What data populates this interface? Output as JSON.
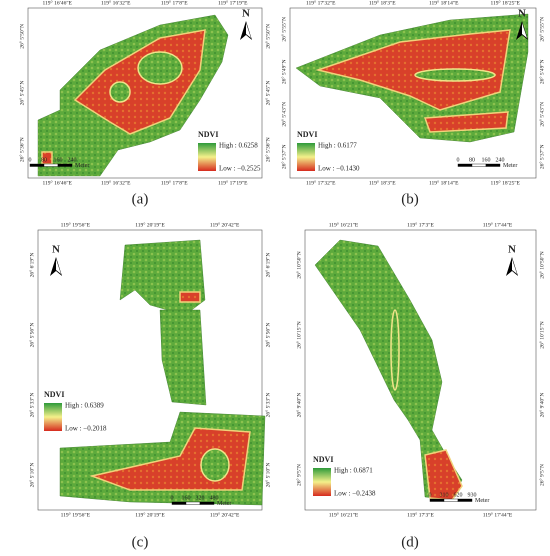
{
  "panels": [
    {
      "label": "(a)",
      "north": "N",
      "coords": {
        "top": [
          "119° 16′46″E",
          "119° 16′32″E",
          "119° 17′8″E",
          "119° 17′19″E"
        ],
        "bottom": [
          "119° 16′46″E",
          "119° 16′32″E",
          "119° 17′8″E",
          "119° 17′19″E"
        ],
        "left": [
          "26° 5′50″N",
          "26° 5′45″N",
          "26° 5′36″N"
        ],
        "right": [
          "26° 5′50″N",
          "26° 5′45″N",
          "26° 5′36″N"
        ]
      },
      "legend": {
        "title": "NDVI",
        "high": "High : 0.6258",
        "low": "Low : −0.2525"
      },
      "scale": {
        "ticks": [
          0,
          80,
          160,
          240
        ],
        "unit": "Meter"
      }
    },
    {
      "label": "(b)",
      "north": "N",
      "coords": {
        "top": [
          "119° 17′32″E",
          "119° 18′3″E",
          "119° 18′14″E",
          "119° 18′25″E"
        ],
        "bottom": [
          "119° 17′32″E",
          "119° 18′3″E",
          "119° 18′14″E",
          "119° 18′25″E"
        ],
        "left": [
          "26° 5′55″N",
          "26° 5′49″N",
          "26° 5′43″N",
          "26° 5′37″N"
        ],
        "right": [
          "26° 5′55″N",
          "26° 5′49″N",
          "26° 5′43″N",
          "26° 5′37″N"
        ]
      },
      "legend": {
        "title": "NDVI",
        "high": "High : 0.6177",
        "low": "Low : −0.1430"
      },
      "scale": {
        "ticks": [
          0,
          80,
          160,
          240
        ],
        "unit": "Meter"
      }
    },
    {
      "label": "(c)",
      "north": "N",
      "coords": {
        "top": [
          "119° 19′56″E",
          "119° 20′19″E",
          "119° 20′42″E"
        ],
        "bottom": [
          "119° 19′56″E",
          "119° 20′19″E",
          "119° 20′42″E"
        ],
        "left": [
          "26° 6′19″N",
          "26° 5′56″N",
          "26° 5′33″N",
          "26° 5′10″N"
        ],
        "right": [
          "26° 6′19″N",
          "26° 5′56″N",
          "26° 5′33″N",
          "26° 5′10″N"
        ]
      },
      "legend": {
        "title": "NDVI",
        "high": "High : 0.6389",
        "low": "Low : −0.2018"
      },
      "scale": {
        "ticks": [
          0,
          160,
          320,
          480
        ],
        "unit": "Meter"
      }
    },
    {
      "label": "(d)",
      "north": "N",
      "coords": {
        "top": [
          "119° 16′21″E",
          "119° 17′3″E",
          "119° 17′44″E"
        ],
        "bottom": [
          "119° 16′21″E",
          "119° 17′3″E",
          "119° 17′44″E"
        ],
        "left": [
          "26° 10′50″N",
          "26° 10′15″N",
          "26° 9′40″N",
          "26° 9′5″N"
        ],
        "right": [
          "26° 10′50″N",
          "26° 10′15″N",
          "26° 9′40″N",
          "26° 9′5″N"
        ]
      },
      "legend": {
        "title": "NDVI",
        "high": "High : 0.6871",
        "low": "Low : −0.2438"
      },
      "scale": {
        "ticks": [
          0,
          310,
          620,
          930
        ],
        "unit": "Meter"
      }
    }
  ]
}
